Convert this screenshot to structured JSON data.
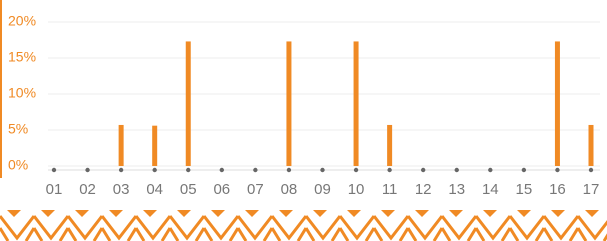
{
  "chart_data": {
    "type": "bar",
    "categories": [
      "01",
      "02",
      "03",
      "04",
      "05",
      "06",
      "07",
      "08",
      "09",
      "10",
      "11",
      "12",
      "13",
      "14",
      "15",
      "16",
      "17"
    ],
    "values": [
      0,
      0,
      5.7,
      5.6,
      17.3,
      0,
      0,
      17.3,
      0,
      17.3,
      5.7,
      0,
      0,
      0,
      0,
      17.3,
      5.7
    ],
    "color": "#f08a24",
    "ylim": [
      0,
      20
    ],
    "yticks": [
      {
        "value": 0,
        "label": "0%"
      },
      {
        "value": 5,
        "label": "5%"
      },
      {
        "value": 10,
        "label": "10%"
      },
      {
        "value": 15,
        "label": "15%"
      },
      {
        "value": 20,
        "label": "20%"
      }
    ],
    "grid": true
  }
}
